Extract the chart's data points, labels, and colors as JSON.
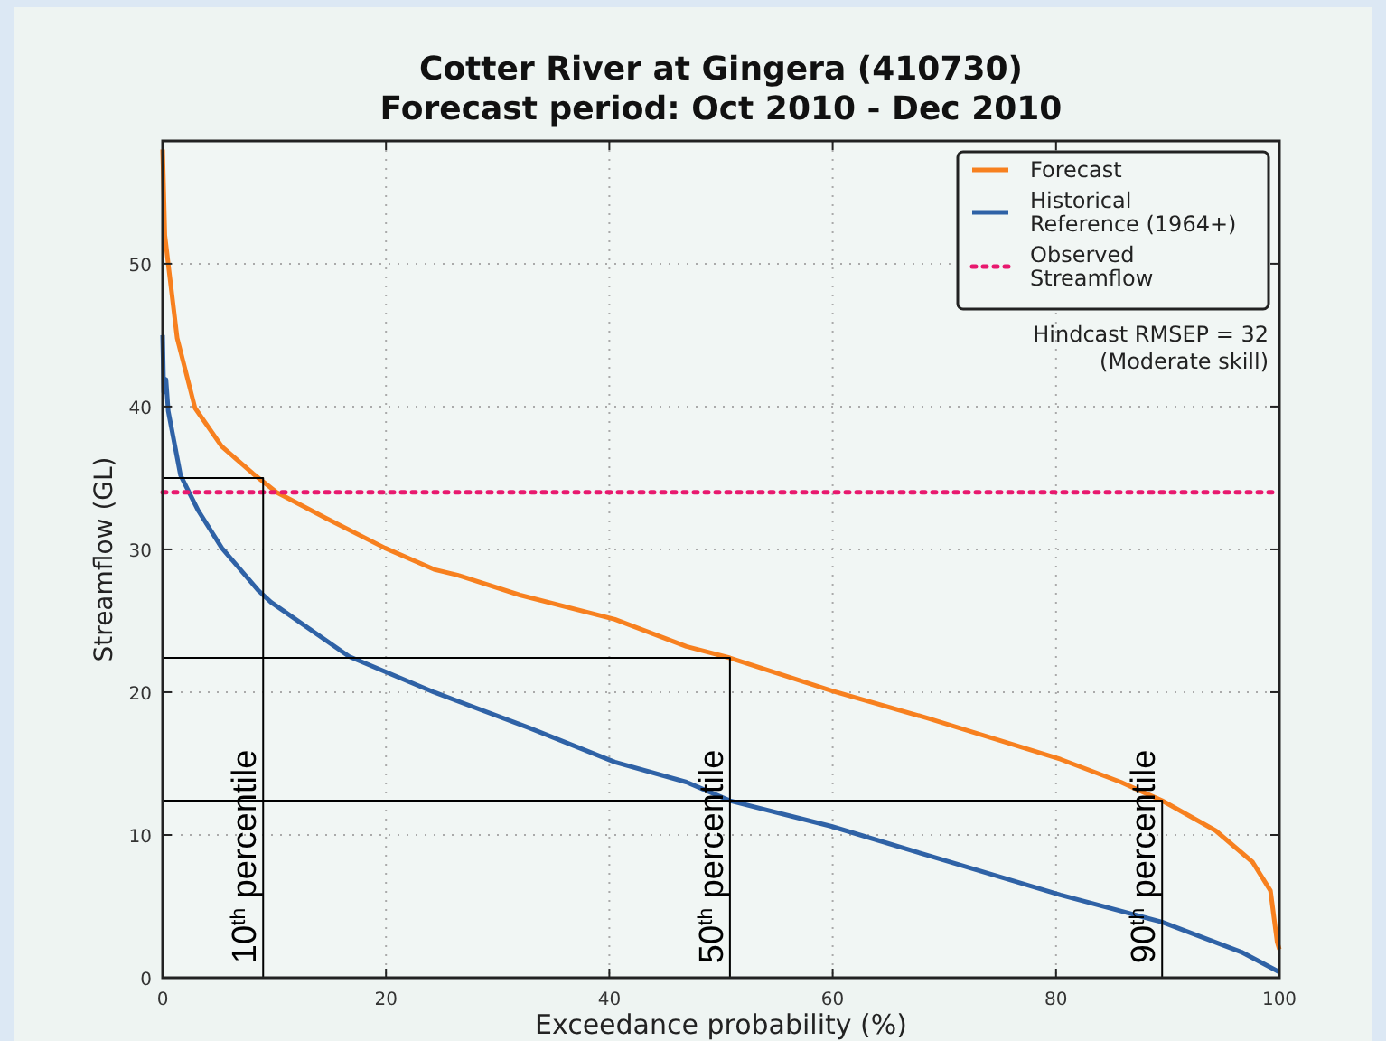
{
  "chart_data": {
    "type": "line",
    "title": "Cotter River at Gingera (410730)",
    "subtitle": "Forecast period: Oct 2010 - Dec 2010",
    "xlabel": "Exceedance probability (%)",
    "ylabel": "Streamflow (GL)",
    "xlim": [
      0,
      100
    ],
    "ylim": [
      0,
      58.6
    ],
    "xticks": [
      0,
      20,
      40,
      60,
      80,
      100
    ],
    "yticks": [
      0,
      10,
      20,
      30,
      40,
      50
    ],
    "grid": true,
    "legend": "top right",
    "line_style": "solid",
    "series": [
      {
        "name": "Forecast",
        "color": "#f7801f",
        "x": [
          0,
          0.2,
          0.5,
          1.3,
          2.9,
          5.3,
          8.1,
          10.2,
          14.6,
          19.9,
          24.3,
          26.4,
          32,
          40.5,
          46.9,
          50.8,
          59.9,
          68.4,
          80.4,
          85.8,
          89.5,
          94.3,
          97.6,
          99.2,
          99.8,
          100
        ],
        "values": [
          58,
          52,
          50,
          44.8,
          39.9,
          37.2,
          35.3,
          34,
          32.2,
          30.1,
          28.6,
          28.2,
          26.8,
          25.1,
          23.2,
          22.4,
          20.1,
          18.2,
          15.3,
          13.7,
          12.4,
          10.3,
          8.1,
          6.1,
          2.5,
          2
        ]
      },
      {
        "name": "Historical Reference (1964+)",
        "color": "#2f62a6",
        "x": [
          0,
          0.1,
          0.3,
          0.5,
          1.6,
          3.2,
          5.3,
          8.6,
          9.7,
          16.7,
          24.3,
          32.8,
          40.5,
          46.9,
          50.8,
          59.9,
          68.4,
          80.4,
          89.5,
          96.6,
          100
        ],
        "values": [
          45,
          41,
          41.9,
          39.7,
          35.2,
          32.7,
          30.1,
          27.1,
          26.3,
          22.5,
          20,
          17.5,
          15.1,
          13.7,
          12.4,
          10.6,
          8.6,
          5.8,
          3.9,
          1.8,
          0.4
        ]
      },
      {
        "name": "Observed Streamflow",
        "color": "#e8196e",
        "line_style": "dotted",
        "x": [
          0,
          100
        ],
        "values": [
          34,
          34
        ]
      },
      {
        "color": "#000000",
        "x": [
          0,
          9,
          9
        ],
        "values": [
          35,
          35,
          0
        ]
      },
      {
        "color": "#000000",
        "x": [
          0,
          50.8,
          50.8
        ],
        "values": [
          22.4,
          22.4,
          0
        ]
      },
      {
        "color": "#000000",
        "x": [
          0,
          89.5,
          89.5
        ],
        "values": [
          12.4,
          12.4,
          0
        ]
      }
    ],
    "annotations": [
      {
        "text": "10$^{th}$ percentile",
        "x": 9,
        "y": 1
      },
      {
        "text": "50$^{th}$ percentile",
        "x": 50.8,
        "y": 1
      },
      {
        "text": "90$^{th}$ percentile",
        "x": 89.5,
        "y": 1
      },
      "Hindcast RMSEP = 32",
      "(Moderate skill)"
    ]
  }
}
